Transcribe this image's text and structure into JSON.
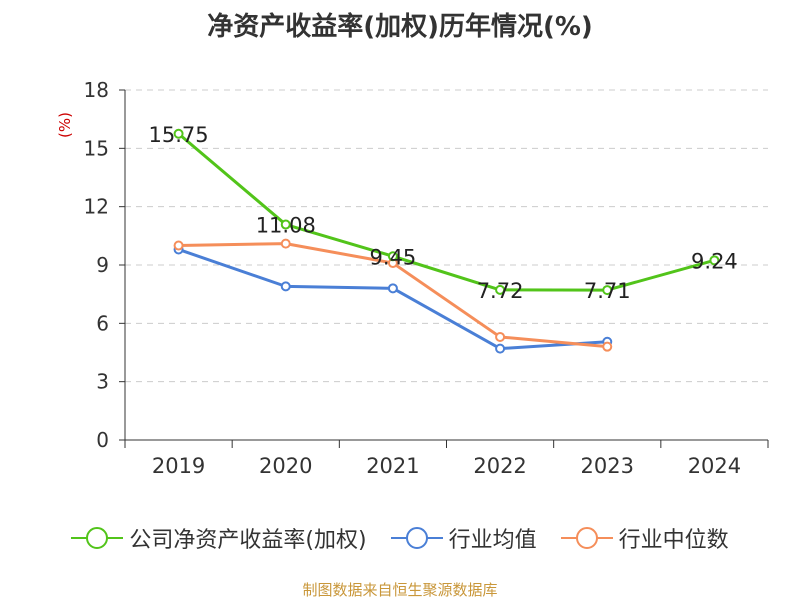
{
  "title": "净资产收益率(加权)历年情况(%)",
  "source_note": "制图数据来自恒生聚源数据库",
  "chart_data": {
    "type": "line",
    "title": "净资产收益率(加权)历年情况(%)",
    "ylabel": "(%)",
    "xlabel": "",
    "categories": [
      "2019",
      "2020",
      "2021",
      "2022",
      "2023",
      "2024"
    ],
    "yticks": [
      0,
      3,
      6,
      9,
      12,
      15,
      18
    ],
    "ylim": [
      0,
      18
    ],
    "grid": true,
    "legend_position": "bottom",
    "series": [
      {
        "name": "公司净资产收益率(加权)",
        "color": "#52c41a",
        "values": [
          15.75,
          11.08,
          9.45,
          7.72,
          7.71,
          9.24
        ],
        "labels": [
          "15.75",
          "11.08",
          "9.45",
          "7.72",
          "7.71",
          "9.24"
        ]
      },
      {
        "name": "行业均值",
        "color": "#4a7fd6",
        "values": [
          9.8,
          7.9,
          7.8,
          4.7,
          5.05,
          null
        ]
      },
      {
        "name": "行业中位数",
        "color": "#f58e5a",
        "values": [
          10.0,
          10.1,
          9.1,
          5.3,
          4.8,
          null
        ]
      }
    ]
  }
}
